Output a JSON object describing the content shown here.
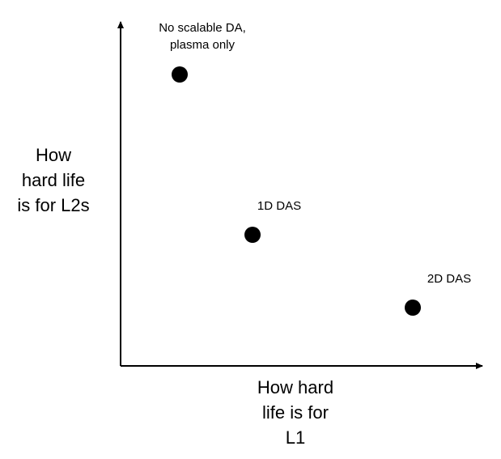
{
  "axes": {
    "y_label": "How\nhard life\nis for L2s",
    "x_label": "How hard\nlife is for\nL1"
  },
  "points": [
    {
      "label": "No scalable DA,\nplasma only"
    },
    {
      "label": "1D DAS"
    },
    {
      "label": "2D DAS"
    }
  ],
  "colors": {
    "ink": "#000000",
    "background": "#ffffff"
  }
}
